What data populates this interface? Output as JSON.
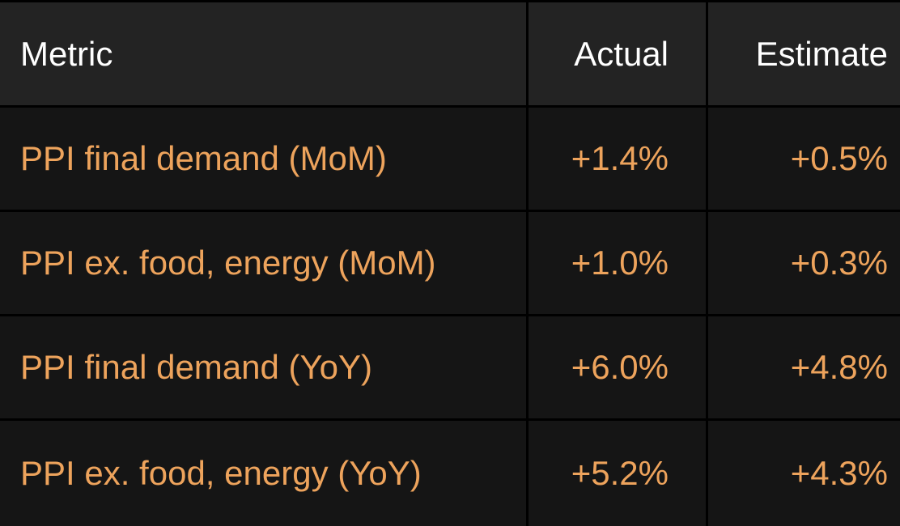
{
  "table": {
    "header": [
      "Metric",
      "Actual",
      "Estimate"
    ],
    "rows": [
      [
        "PPI final demand (MoM)",
        "+1.4%",
        "+0.5%"
      ],
      [
        "PPI ex. food, energy (MoM)",
        "+1.0%",
        "+0.3%"
      ],
      [
        "PPI final demand (YoY)",
        "+6.0%",
        "+4.8%"
      ],
      [
        "PPI ex. food, energy (YoY)",
        "+5.2%",
        "+4.3%"
      ]
    ]
  }
}
